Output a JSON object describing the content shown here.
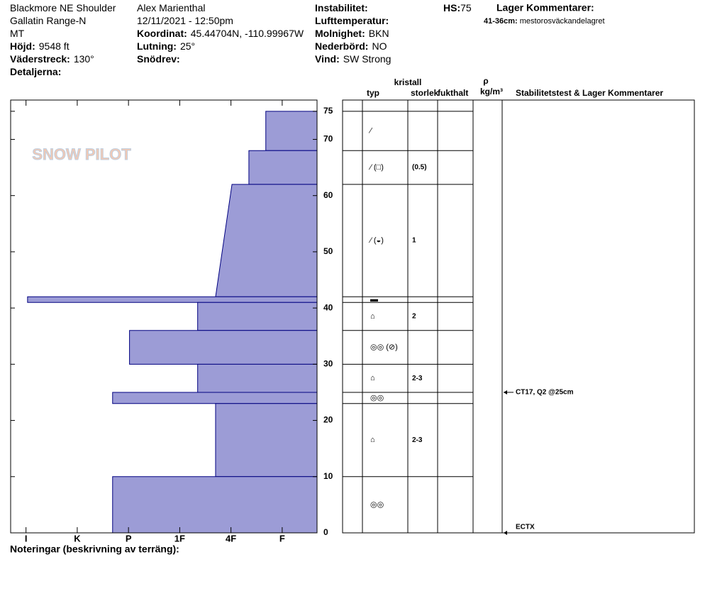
{
  "header": {
    "columns": [
      [
        {
          "text": "Blackmore NE Shoulder"
        },
        {
          "text": "Gallatin Range-N"
        },
        {
          "text": "MT"
        },
        {
          "label": "Höjd:",
          "value": "9548 ft"
        },
        {
          "label": "Väderstreck:",
          "value": "130°"
        },
        {
          "label": "Detaljerna:"
        }
      ],
      [
        {
          "text": "Alex Marienthal"
        },
        {
          "text": "12/11/2021 - 12:50pm"
        },
        {
          "label": "Koordinat:",
          "value": "45.44704N, -110.99967W"
        },
        {
          "label": "Lutning:",
          "value": "25°"
        },
        {
          "label": "Snödrev:"
        }
      ],
      [
        {
          "label": "Instabilitet:"
        },
        {
          "label": "Lufttemperatur:"
        },
        {
          "label": "Molnighet:",
          "value": "BKN"
        },
        {
          "label": "Nederbörd:",
          "value": "NO"
        },
        {
          "label": "Vind:",
          "value": "SW Strong"
        }
      ]
    ],
    "hs": {
      "label": "HS:",
      "value": 75
    },
    "layer_comments": {
      "title": "Lager Kommentarer:",
      "items": [
        {
          "label": "41-36cm:",
          "value": "mestorosväckandelagret"
        }
      ]
    }
  },
  "logo": "SNOW PILOT",
  "profile": {
    "ylim": [
      0,
      77
    ],
    "yticks": [
      0,
      10,
      20,
      30,
      40,
      50,
      60,
      70,
      75
    ],
    "xlim": [
      -0.3,
      5.68
    ],
    "xticks": [
      {
        "value": 0,
        "label": "I"
      },
      {
        "value": 1,
        "label": "K"
      },
      {
        "value": 2,
        "label": "P"
      },
      {
        "value": 3,
        "label": "1F"
      },
      {
        "value": 4,
        "label": "4F"
      },
      {
        "value": 5,
        "label": "F"
      }
    ],
    "color": "#9c9cd6",
    "layers": [
      {
        "top": 75,
        "bottom": 68,
        "hardness_top": 4.68,
        "hardness_bottom": 4.68,
        "type": "⁄",
        "size": null
      },
      {
        "top": 68,
        "bottom": 62,
        "hardness_top": 4.35,
        "hardness_bottom": 4.35,
        "type": "⁄ (□)",
        "size": "(0.5)"
      },
      {
        "top": 62,
        "bottom": 42,
        "hardness_top": 4.02,
        "hardness_bottom": 3.7,
        "type": "⁄ (◒)",
        "size": "1"
      },
      {
        "top": 42,
        "bottom": 41,
        "hardness_top": 0.03,
        "hardness_bottom": 0.03,
        "type": "▬",
        "size": null
      },
      {
        "top": 41,
        "bottom": 36,
        "hardness_top": 3.35,
        "hardness_bottom": 3.35,
        "type": "⌂",
        "size": "2"
      },
      {
        "top": 36,
        "bottom": 30,
        "hardness_top": 2.02,
        "hardness_bottom": 2.02,
        "type": "◎◎ (⊘)",
        "size": null
      },
      {
        "top": 30,
        "bottom": 25,
        "hardness_top": 3.35,
        "hardness_bottom": 3.35,
        "type": "⌂",
        "size": "2-3"
      },
      {
        "top": 25,
        "bottom": 23,
        "hardness_top": 1.69,
        "hardness_bottom": 1.69,
        "type": "◎◎",
        "size": null
      },
      {
        "top": 23,
        "bottom": 10,
        "hardness_top": 3.7,
        "hardness_bottom": 3.7,
        "type": "⌂",
        "size": "2-3"
      },
      {
        "top": 10,
        "bottom": 0,
        "hardness_top": 1.69,
        "hardness_bottom": 1.69,
        "type": "◎◎",
        "size": null
      }
    ]
  },
  "table_header": {
    "crystal": "kristall",
    "type": "typ",
    "size": "storlek",
    "moisture": "fukthalt",
    "rho": "ρ",
    "density": "kg/m³",
    "stability": "Stabilitetstest & Lager Kommentarer"
  },
  "tests": [
    {
      "depth": 25,
      "label": "CT17, Q2 @25cm"
    },
    {
      "depth": 0,
      "label": "ECTX"
    }
  ],
  "footer": "Noteringar (beskrivning av terräng):"
}
